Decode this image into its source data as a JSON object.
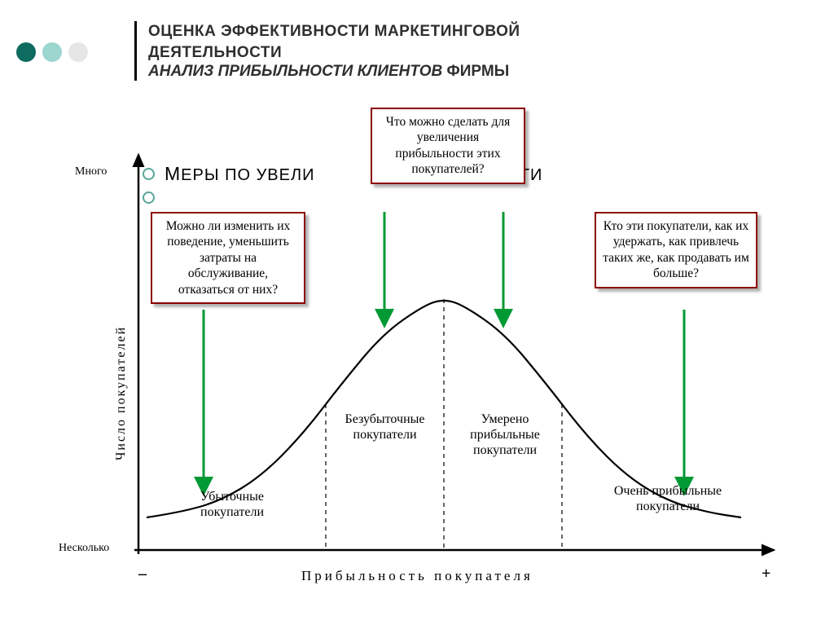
{
  "decor": {
    "colors": [
      "#0e6b5f",
      "#9dd6cf",
      "#e6e6e6"
    ]
  },
  "title": {
    "line1": "ОЦЕНКА ЭФФЕКТИВНОСТИ МАРКЕТИНГОВОЙ",
    "line2": "ДЕЯТЕЛЬНОСТИ",
    "line3_italic": "АНАЛИЗ ПРИБЫЛЬНОСТИ КЛИЕНТОВ",
    "line3_tail": " ФИРМЫ"
  },
  "bullet": {
    "text1_a": "М",
    "text1_b": "ЕРЫ ПО УВЕЛИ",
    "text1_c": "ОСТИ"
  },
  "axes": {
    "ylabel": "Число покупателей",
    "xlabel": "Прибыльность покупателя",
    "y_top": "Много",
    "y_bottom": "Несколько",
    "x_left": "–",
    "x_right": "+"
  },
  "callouts": {
    "top": "Что можно сделать для увеличения прибыльности этих покупателей?",
    "left": "Можно ли изменить их поведение, уменьшить затраты на обслуживание, отказаться от них?",
    "right": "Кто эти покупатели, как их удержать, как привлечь таких же, как продавать им больше?"
  },
  "segments": {
    "s1": "Убыточные покупатели",
    "s2": "Безубыточные покупатели",
    "s3": "Умерено прибыльные покупатели",
    "s4": "Очень прибыльные покупатели"
  },
  "chart": {
    "type": "bell-curve",
    "curve_color": "#000000",
    "curve_width": 2.2,
    "axis_color": "#000000",
    "axis_width": 2.5,
    "divider_dash": "5,5",
    "arrow_color": "#009933",
    "arrow_width": 3,
    "callout_border": "#8b0000",
    "callout_shadow": "rgba(0,0,0,0.3)",
    "background": "#ffffff",
    "x_range": [
      50,
      820
    ],
    "y_range": [
      490,
      20
    ],
    "dividers_x": [
      280,
      425,
      570
    ],
    "curve_points": [
      [
        60,
        450
      ],
      [
        100,
        444
      ],
      [
        150,
        430
      ],
      [
        200,
        400
      ],
      [
        250,
        350
      ],
      [
        300,
        285
      ],
      [
        350,
        225
      ],
      [
        400,
        190
      ],
      [
        425,
        182
      ],
      [
        450,
        190
      ],
      [
        500,
        225
      ],
      [
        550,
        285
      ],
      [
        600,
        350
      ],
      [
        650,
        400
      ],
      [
        700,
        430
      ],
      [
        750,
        444
      ],
      [
        790,
        450
      ]
    ],
    "arrows": [
      {
        "x": 130,
        "end_y": 418,
        "start_y": 195
      },
      {
        "x": 352,
        "end_y": 212,
        "start_y": 75
      },
      {
        "x": 498,
        "end_y": 212,
        "start_y": 75
      },
      {
        "x": 720,
        "end_y": 418,
        "start_y": 195
      }
    ]
  }
}
